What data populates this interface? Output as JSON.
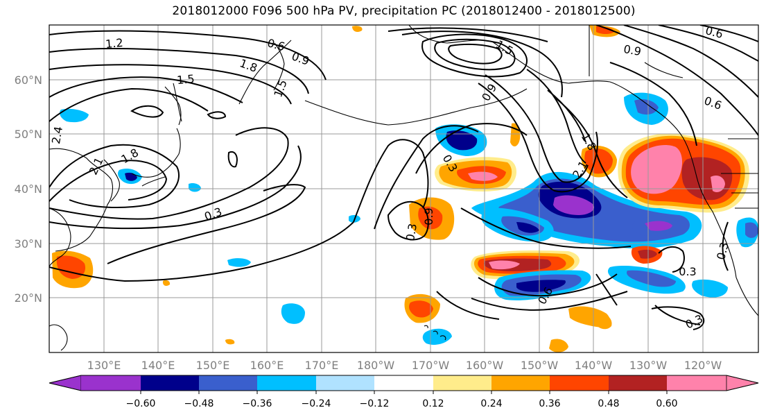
{
  "title": "2018012000 F096 500 hPa PV, precipitation PC (2018012400 - 2018012500)",
  "lat_labels": [
    "60°N",
    "50°N",
    "40°N",
    "30°N",
    "20°N"
  ],
  "lon_labels": [
    "130°E",
    "140°E",
    "150°E",
    "160°E",
    "170°E",
    "180°W",
    "170°W",
    "160°W",
    "150°W",
    "140°W",
    "130°W",
    "120°W"
  ],
  "contour_labels": [
    "1.2",
    "0.6",
    "0.9",
    "1.5",
    "1.8",
    "1.8",
    "2.1",
    "2.4",
    "0.3",
    "1.5",
    "2.1",
    "0.3",
    "0.6",
    "0.9",
    "0.9",
    "1.8",
    "1.5",
    "0.6",
    "0.3",
    "0.3",
    "0.3",
    "0.9",
    "0.6",
    "0.3"
  ],
  "colorbar": {
    "tick_labels": [
      "−0.60",
      "−0.48",
      "−0.36",
      "−0.24",
      "−0.12",
      "0.12",
      "0.24",
      "0.36",
      "0.48",
      "0.60"
    ],
    "colors": [
      "#9a32cd",
      "#00008b",
      "#3a5fcd",
      "#00bfff",
      "#b0e2ff",
      "#ffffff",
      "#ffec8b",
      "#ffa500",
      "#ff4500",
      "#b22222",
      "#ff82ab"
    ]
  },
  "colors": {
    "grid": "#999999",
    "coast": "#000000"
  }
}
